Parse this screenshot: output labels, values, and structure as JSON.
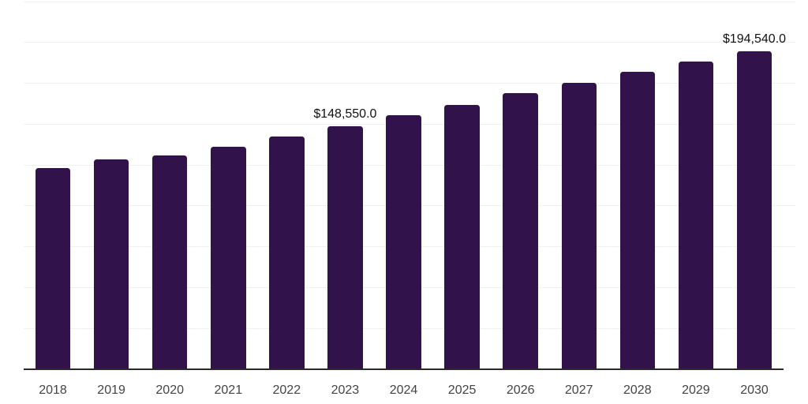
{
  "chart_data": {
    "type": "bar",
    "title": "",
    "xlabel": "",
    "ylabel": "",
    "categories": [
      "2018",
      "2019",
      "2020",
      "2021",
      "2022",
      "2023",
      "2024",
      "2025",
      "2026",
      "2027",
      "2028",
      "2029",
      "2030"
    ],
    "values": [
      123000,
      128300,
      130700,
      136300,
      142600,
      148550,
      155500,
      162000,
      168800,
      175500,
      182000,
      188400,
      194540
    ],
    "labeled_points": [
      {
        "category": "2023",
        "label": "$148,550.0"
      },
      {
        "category": "2030",
        "label": "$194,540.0"
      }
    ],
    "ylim": [
      0,
      225000
    ],
    "gridline_interval": 25000,
    "grid": true,
    "legend": "none",
    "y_axis_tick_labels_visible": false,
    "colors": {
      "bar": "#32124A",
      "gridline": "#f1f1f1",
      "axis_line": "#2a2a2a",
      "tick_label": "#444444",
      "data_label": "#111111",
      "background": "#ffffff"
    }
  }
}
